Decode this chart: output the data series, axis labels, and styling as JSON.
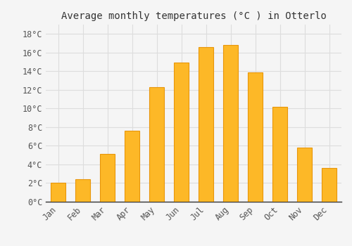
{
  "title": "Average monthly temperatures (°C ) in Otterlo",
  "months": [
    "Jan",
    "Feb",
    "Mar",
    "Apr",
    "May",
    "Jun",
    "Jul",
    "Aug",
    "Sep",
    "Oct",
    "Nov",
    "Dec"
  ],
  "values": [
    2.0,
    2.4,
    5.1,
    7.6,
    12.3,
    14.9,
    16.6,
    16.8,
    13.9,
    10.2,
    5.8,
    3.6
  ],
  "bar_color": "#FDB827",
  "bar_edge_color": "#E8960A",
  "background_color": "#f5f5f5",
  "grid_color": "#dddddd",
  "yticks": [
    0,
    2,
    4,
    6,
    8,
    10,
    12,
    14,
    16,
    18
  ],
  "ylim": [
    0,
    19.0
  ],
  "title_fontsize": 10,
  "tick_fontsize": 8.5,
  "tick_font_family": "monospace",
  "bar_width": 0.6
}
